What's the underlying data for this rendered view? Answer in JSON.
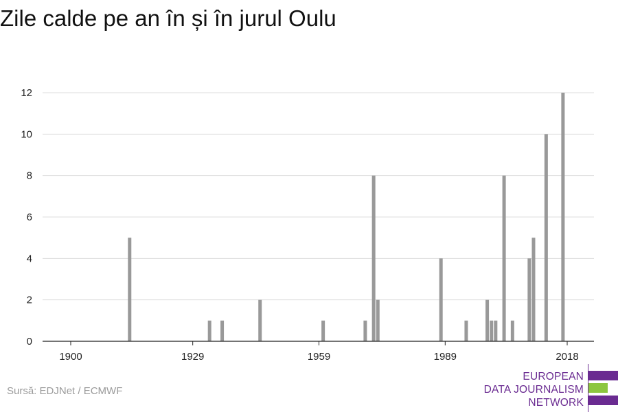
{
  "title": "Zile calde pe an în și în jurul Oulu",
  "source": "Sursă: EDJNet / ECMWF",
  "logo": {
    "lines": [
      "EUROPEAN",
      "DATA JOURNALISM",
      "NETWORK"
    ],
    "colors": {
      "purple": "#6a2b91",
      "green": "#8cc63f"
    }
  },
  "colors": {
    "bar": "#999999",
    "grid": "#dddddd",
    "axis": "#222222"
  },
  "chart_data": {
    "type": "bar",
    "title": "Zile calde pe an în și în jurul Oulu",
    "xlabel": "",
    "ylabel": "",
    "xlim": [
      1899,
      2025
    ],
    "ylim": [
      0,
      12
    ],
    "x_ticks": [
      1900,
      1929,
      1959,
      1989,
      2018
    ],
    "y_ticks": [
      0,
      2,
      4,
      6,
      8,
      10,
      12
    ],
    "grid": true,
    "x": [
      1914,
      1933,
      1936,
      1945,
      1960,
      1970,
      1972,
      1973,
      1988,
      1994,
      1999,
      2000,
      2001,
      2003,
      2005,
      2009,
      2010,
      2013,
      2017
    ],
    "values": [
      5,
      1,
      1,
      2,
      1,
      1,
      8,
      2,
      4,
      1,
      2,
      1,
      1,
      8,
      1,
      4,
      5,
      10,
      12
    ]
  }
}
